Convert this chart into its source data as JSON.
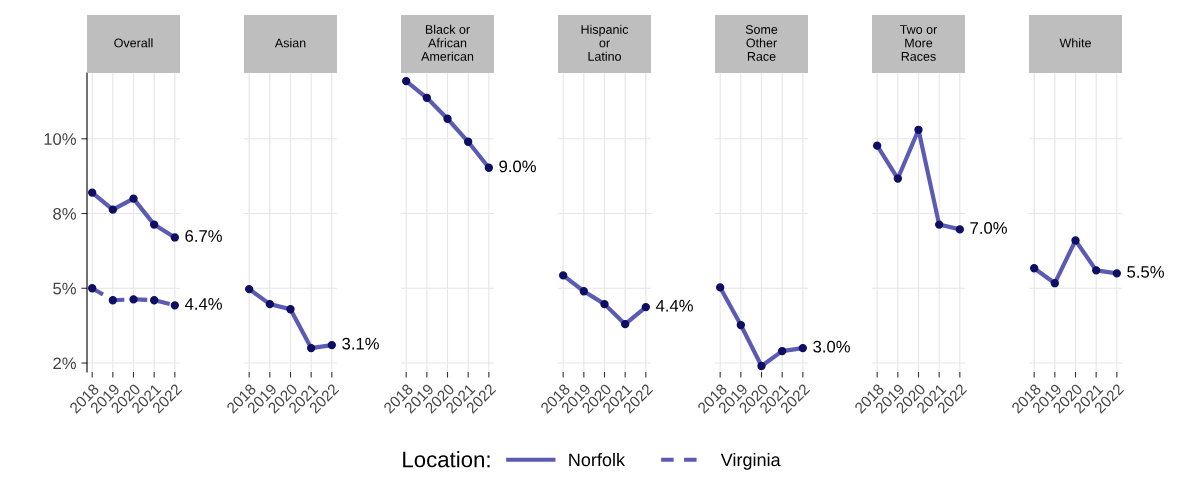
{
  "chart_data": [
    {
      "type": "line",
      "title": "Overall",
      "categories": [
        "2018",
        "2019",
        "2020",
        "2021",
        "2022"
      ],
      "ylim": [
        2.2,
        12.2
      ],
      "yticks": [
        {
          "value": 2.5,
          "label": "2%"
        },
        {
          "value": 5,
          "label": "5%"
        },
        {
          "value": 7.5,
          "label": "8%"
        },
        {
          "value": 10,
          "label": "10%"
        }
      ],
      "grid": true,
      "marker": "circle",
      "legend": "bottom",
      "legend_title": "Location:",
      "series": [
        {
          "name": "Norfolk",
          "color": "#5b5bb3",
          "line_style": "solid",
          "values": [
            8.2,
            7.63,
            8.0,
            7.13,
            6.7
          ],
          "value_labels": [
            null,
            null,
            null,
            null,
            "6.7%"
          ]
        },
        {
          "name": "Virginia",
          "color": "#5b5bb3",
          "line_style": "dashed",
          "values": [
            5.0,
            4.6,
            4.63,
            4.6,
            4.43
          ],
          "value_labels": [
            null,
            null,
            null,
            null,
            "4.4%"
          ]
        }
      ]
    },
    {
      "type": "line",
      "title": "Asian",
      "categories": [
        "2018",
        "2019",
        "2020",
        "2021",
        "2022"
      ],
      "ylim": [
        2.2,
        12.2
      ],
      "yticks": [
        2.5,
        5,
        7.5,
        10
      ],
      "grid": true,
      "marker": "circle",
      "tick_labels": "x",
      "series": [
        {
          "color": "#5b5bb3",
          "line_style": "solid",
          "values": [
            4.97,
            4.47,
            4.3,
            3.0,
            3.1
          ],
          "value_labels": [
            null,
            null,
            null,
            null,
            "3.1%"
          ]
        }
      ]
    },
    {
      "type": "line",
      "title": "Black or\nAfrican\nAmerican",
      "categories": [
        "2018",
        "2019",
        "2020",
        "2021",
        "2022"
      ],
      "ylim": [
        2.2,
        12.2
      ],
      "yticks": [
        2.5,
        5,
        7.5,
        10
      ],
      "grid": true,
      "marker": "circle",
      "tick_labels": "x",
      "series": [
        {
          "color": "#5b5bb3",
          "line_style": "solid",
          "values": [
            11.93,
            11.37,
            10.67,
            9.9,
            9.03
          ],
          "value_labels": [
            null,
            null,
            null,
            null,
            "9.0%"
          ]
        }
      ]
    },
    {
      "type": "line",
      "title": "Hispanic\nor\nLatino",
      "categories": [
        "2018",
        "2019",
        "2020",
        "2021",
        "2022"
      ],
      "ylim": [
        2.2,
        12.2
      ],
      "yticks": [
        2.5,
        5,
        7.5,
        10
      ],
      "grid": true,
      "marker": "circle",
      "tick_labels": "x",
      "series": [
        {
          "color": "#5b5bb3",
          "line_style": "solid",
          "values": [
            5.43,
            4.9,
            4.47,
            3.8,
            4.37
          ],
          "value_labels": [
            null,
            null,
            null,
            null,
            "4.4%"
          ]
        }
      ]
    },
    {
      "type": "line",
      "title": "Some\nOther\nRace",
      "categories": [
        "2018",
        "2019",
        "2020",
        "2021",
        "2022"
      ],
      "ylim": [
        2.2,
        12.2
      ],
      "yticks": [
        2.5,
        5,
        7.5,
        10
      ],
      "grid": true,
      "marker": "circle",
      "tick_labels": "x",
      "series": [
        {
          "color": "#5b5bb3",
          "line_style": "solid",
          "values": [
            5.03,
            3.77,
            2.4,
            2.9,
            3.0
          ],
          "value_labels": [
            null,
            null,
            null,
            null,
            "3.0%"
          ]
        }
      ]
    },
    {
      "type": "line",
      "title": "Two or\nMore\nRaces",
      "categories": [
        "2018",
        "2019",
        "2020",
        "2021",
        "2022"
      ],
      "ylim": [
        2.2,
        12.2
      ],
      "yticks": [
        2.5,
        5,
        7.5,
        10
      ],
      "grid": true,
      "marker": "circle",
      "tick_labels": "x",
      "series": [
        {
          "color": "#5b5bb3",
          "line_style": "solid",
          "values": [
            9.77,
            8.67,
            10.3,
            7.13,
            6.97
          ],
          "value_labels": [
            null,
            null,
            null,
            null,
            "7.0%"
          ]
        }
      ]
    },
    {
      "type": "line",
      "title": "White",
      "categories": [
        "2018",
        "2019",
        "2020",
        "2021",
        "2022"
      ],
      "ylim": [
        2.2,
        12.2
      ],
      "yticks": [
        2.5,
        5,
        7.5,
        10
      ],
      "grid": true,
      "marker": "circle",
      "tick_labels": "x",
      "series": [
        {
          "color": "#5b5bb3",
          "line_style": "solid",
          "values": [
            5.67,
            5.17,
            6.6,
            5.6,
            5.5
          ],
          "value_labels": [
            null,
            null,
            null,
            null,
            "5.5%"
          ]
        }
      ]
    }
  ]
}
